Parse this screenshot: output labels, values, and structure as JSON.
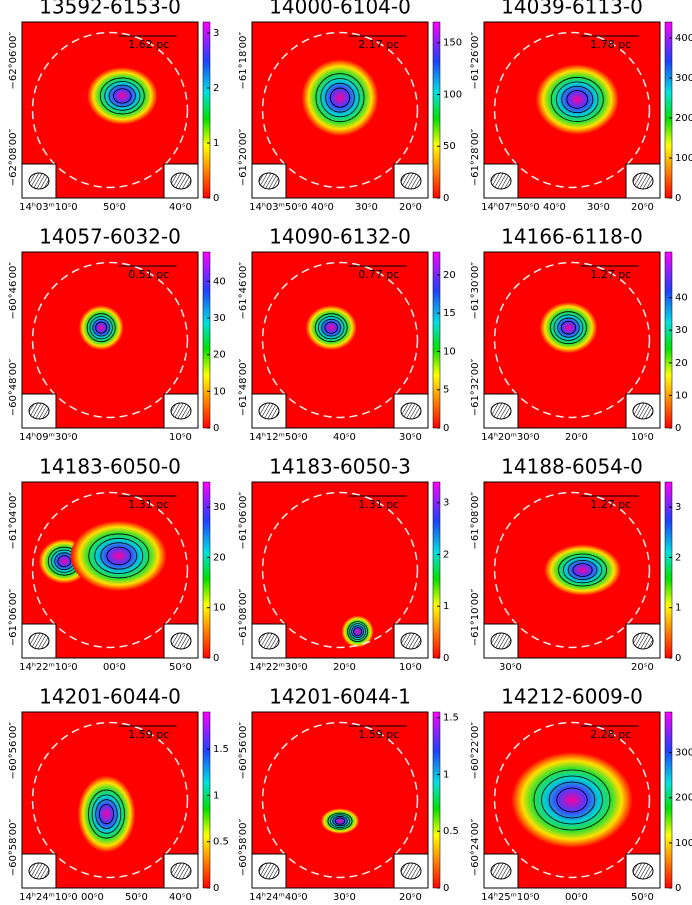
{
  "panels": [
    {
      "title": "13592-6153-0",
      "scale": "1.62 pc",
      "cbar_range": [
        0,
        3.2
      ],
      "cbar_ticks": [
        0,
        1,
        2,
        3
      ],
      "dec_ticks": [
        "−62°06′00″",
        "−62°08′00″"
      ],
      "ra_ticks": [
        "14ʰ03ᵐ10ˢ0",
        "50ˢ0",
        "40ˢ0"
      ]
    },
    {
      "title": "14000-6104-0",
      "scale": "2.17 pc",
      "cbar_range": [
        0,
        170
      ],
      "cbar_ticks": [
        0,
        50,
        100,
        150
      ],
      "dec_ticks": [
        "−61°18′00″",
        "−61°20′00″"
      ],
      "ra_ticks": [
        "14ʰ03ᵐ50ˢ0",
        "40ˢ0",
        "30ˢ0",
        "20ˢ0"
      ]
    },
    {
      "title": "14039-6113-0",
      "scale": "1.78 pc",
      "cbar_range": [
        0,
        440
      ],
      "cbar_ticks": [
        0,
        100,
        200,
        300,
        400
      ],
      "dec_ticks": [
        "−61°26′00″",
        "−61°28′00″"
      ],
      "ra_ticks": [
        "14ʰ07ᵐ50ˢ0",
        "40ˢ0",
        "30ˢ0",
        "20ˢ0"
      ]
    },
    {
      "title": "14057-6032-0",
      "scale": "0.51 pc",
      "cbar_range": [
        0,
        48
      ],
      "cbar_ticks": [
        0,
        10,
        20,
        30,
        40
      ],
      "dec_ticks": [
        "−60°46′00″",
        "−60°48′00″"
      ],
      "ra_ticks": [
        "14ʰ09ᵐ30ˢ0",
        "10ˢ0"
      ]
    },
    {
      "title": "14090-6132-0",
      "scale": "0.77 pc",
      "cbar_range": [
        0,
        23
      ],
      "cbar_ticks": [
        0,
        5,
        10,
        15,
        20
      ],
      "dec_ticks": [
        "−61°46′00″",
        "−61°48′00″"
      ],
      "ra_ticks": [
        "14ʰ12ᵐ50ˢ0",
        "40ˢ0",
        "30ˢ0"
      ]
    },
    {
      "title": "14166-6118-0",
      "scale": "1.27 pc",
      "cbar_range": [
        0,
        54
      ],
      "cbar_ticks": [
        0,
        10,
        20,
        30,
        40
      ],
      "dec_ticks": [
        "−61°30′00″",
        "−61°32′00″"
      ],
      "ra_ticks": [
        "14ʰ20ᵐ30ˢ0",
        "20ˢ0",
        "10ˢ0"
      ]
    },
    {
      "title": "14183-6050-0",
      "scale": "1.31 pc",
      "cbar_range": [
        0,
        35
      ],
      "cbar_ticks": [
        0,
        10,
        20,
        30
      ],
      "dec_ticks": [
        "−61°04′00″",
        "−61°06′00″"
      ],
      "ra_ticks": [
        "14ʰ22ᵐ10ˢ0",
        "00ˢ0",
        "50ˢ0"
      ]
    },
    {
      "title": "14183-6050-3",
      "scale": "1.31 pc",
      "cbar_range": [
        0,
        3.4
      ],
      "cbar_ticks": [
        0,
        1,
        2,
        3
      ],
      "dec_ticks": [
        "−61°06′00″",
        "−61°08′00″"
      ],
      "ra_ticks": [
        "14ʰ22ᵐ30ˢ0",
        "20ˢ0",
        "10ˢ0"
      ]
    },
    {
      "title": "14188-6054-0",
      "scale": "1.27 pc",
      "cbar_range": [
        0,
        3.5
      ],
      "cbar_ticks": [
        0,
        1,
        2,
        3
      ],
      "dec_ticks": [
        "−61°08′00″",
        "−61°10′00″"
      ],
      "ra_ticks": [
        "30ˢ0",
        "20ˢ0"
      ]
    },
    {
      "title": "14201-6044-0",
      "scale": "1.59 pc",
      "cbar_range": [
        0,
        1.9
      ],
      "cbar_ticks": [
        0,
        0.5,
        1,
        1.5
      ],
      "dec_ticks": [
        "−60°56′00″",
        "−60°58′00″"
      ],
      "ra_ticks": [
        "14ʰ24ᵐ10ˢ0",
        "00ˢ0",
        "50ˢ0",
        "40ˢ0"
      ]
    },
    {
      "title": "14201-6044-1",
      "scale": "1.59 pc",
      "cbar_range": [
        0,
        1.55
      ],
      "cbar_ticks": [
        0,
        0.5,
        1,
        1.5
      ],
      "dec_ticks": [
        "−60°56′00″",
        "−60°58′00″"
      ],
      "ra_ticks": [
        "14ʰ24ᵐ40ˢ0",
        "30ˢ0",
        "20ˢ0"
      ]
    },
    {
      "title": "14212-6009-0",
      "scale": "2.28 pc",
      "cbar_range": [
        0,
        390
      ],
      "cbar_ticks": [
        0,
        100,
        200,
        300
      ],
      "dec_ticks": [
        "−60°22′00″",
        "−60°24′00″"
      ],
      "ra_ticks": [
        "14ʰ25ᵐ10ˢ0",
        "00ˢ0",
        "50ˢ0"
      ]
    }
  ]
}
